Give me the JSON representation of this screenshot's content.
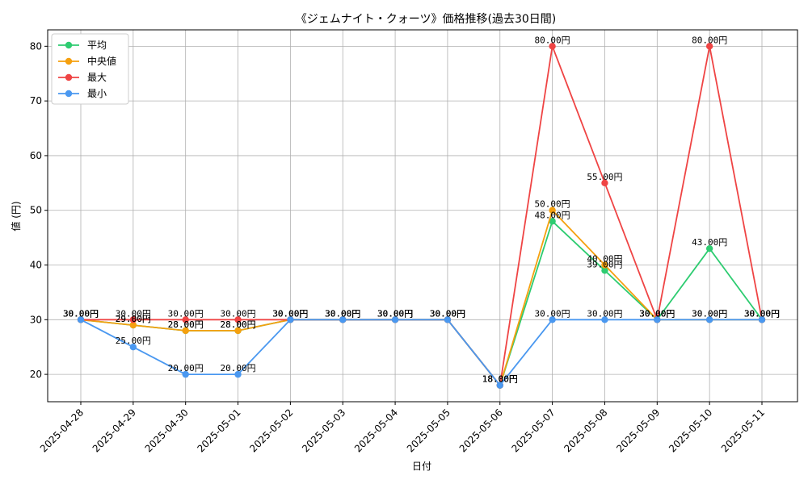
{
  "chart_data": {
    "type": "line",
    "title": "《ジェムナイト・クォーツ》価格推移(過去30日間)",
    "xlabel": "日付",
    "ylabel": "値 (円)",
    "x": [
      "2025-04-28",
      "2025-04-29",
      "2025-04-30",
      "2025-05-01",
      "2025-05-02",
      "2025-05-03",
      "2025-05-04",
      "2025-05-05",
      "2025-05-06",
      "2025-05-07",
      "2025-05-08",
      "2025-05-09",
      "2025-05-10",
      "2025-05-11"
    ],
    "ylim": [
      15,
      83
    ],
    "yticks": [
      20,
      30,
      40,
      50,
      60,
      70,
      80
    ],
    "grid": true,
    "legend_position": "top-left",
    "unit_suffix": "円",
    "series": [
      {
        "name": "平均",
        "color": "#2ecc71",
        "values": [
          30,
          29,
          28,
          28,
          30,
          30,
          30,
          30,
          18,
          48,
          39,
          30,
          43,
          30
        ]
      },
      {
        "name": "中央値",
        "color": "#f5a00f",
        "values": [
          30,
          29,
          28,
          28,
          30,
          30,
          30,
          30,
          18,
          50,
          40,
          30,
          30,
          30
        ]
      },
      {
        "name": "最大",
        "color": "#ef4444",
        "values": [
          30,
          30,
          30,
          30,
          30,
          30,
          30,
          30,
          18,
          80,
          55,
          30,
          80,
          30
        ]
      },
      {
        "name": "最小",
        "color": "#4a98f0",
        "values": [
          30,
          25,
          20,
          20,
          30,
          30,
          30,
          30,
          18,
          30,
          30,
          30,
          30,
          30
        ]
      }
    ]
  }
}
